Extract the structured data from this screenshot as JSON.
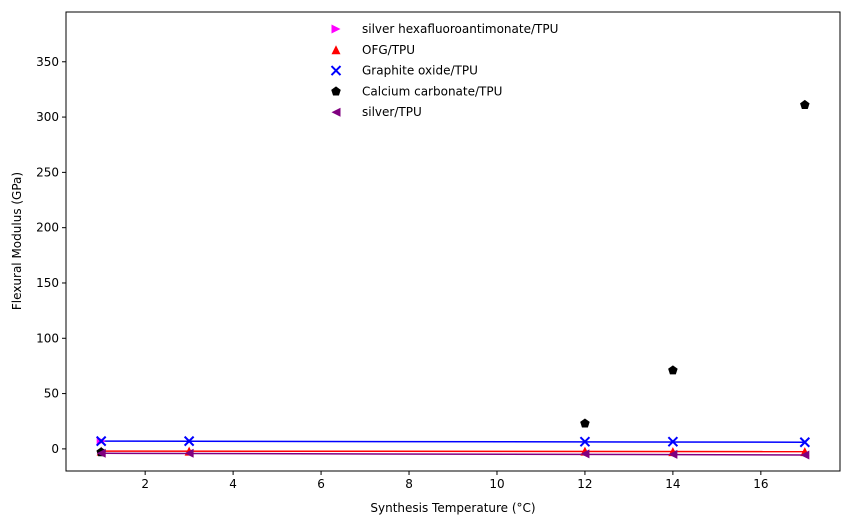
{
  "chart_data": {
    "type": "scatter",
    "title": "",
    "xlabel": "Synthesis Temperature (°C)",
    "ylabel": "Flexural Modulus (GPa)",
    "xlim": [
      0.2,
      17.8
    ],
    "ylim": [
      -20,
      395
    ],
    "xticks": [
      2,
      4,
      6,
      8,
      10,
      12,
      14,
      16
    ],
    "yticks": [
      0,
      50,
      100,
      150,
      200,
      250,
      300,
      350
    ],
    "grid": false,
    "legend_position": "top-center",
    "series": [
      {
        "name": "silver hexafluoroantimonate/TPU",
        "marker": "triangle-right",
        "color": "#ff00ff",
        "x": [
          1
        ],
        "y": [
          7
        ],
        "trend": null
      },
      {
        "name": "OFG/TPU",
        "marker": "triangle-up",
        "color": "#ff0000",
        "x": [
          1,
          3,
          12,
          14,
          17
        ],
        "y": [
          -2,
          -2,
          -2,
          -2.5,
          -2.5
        ],
        "trend": {
          "color": "#ff0000",
          "x": [
            1,
            17
          ],
          "y": [
            -2,
            -2.5
          ]
        }
      },
      {
        "name": "Graphite oxide/TPU",
        "marker": "x",
        "color": "#0000ff",
        "x": [
          1,
          3,
          12,
          14,
          17
        ],
        "y": [
          7,
          7,
          6.5,
          6.5,
          6
        ],
        "trend": {
          "color": "#0000ff",
          "x": [
            1,
            17
          ],
          "y": [
            7,
            6
          ]
        }
      },
      {
        "name": "Calcium carbonate/TPU",
        "marker": "pentagon",
        "color": "#000000",
        "x": [
          1,
          12,
          14,
          17
        ],
        "y": [
          -3,
          23,
          71,
          311
        ],
        "trend": null
      },
      {
        "name": "silver/TPU",
        "marker": "triangle-left",
        "color": "#800080",
        "x": [
          1,
          3,
          12,
          14,
          17
        ],
        "y": [
          -4,
          -4,
          -4.5,
          -5,
          -5.5
        ],
        "trend": {
          "color": "#800080",
          "x": [
            1,
            17
          ],
          "y": [
            -4,
            -5.5
          ]
        }
      }
    ]
  }
}
